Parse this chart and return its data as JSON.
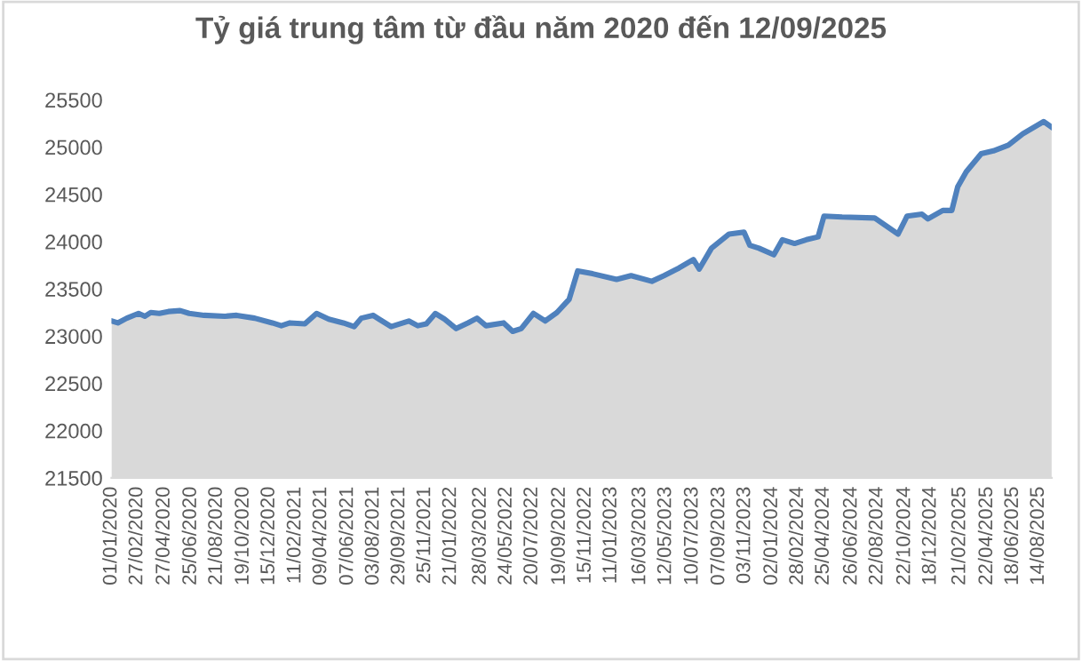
{
  "chart_data": {
    "type": "area",
    "title": "Tỷ giá trung tâm từ đầu năm 2020 đến 12/09/2025",
    "x": [
      "2020-01-01",
      "2020-01-15",
      "2020-02-04",
      "2020-03-01",
      "2020-03-15",
      "2020-03-28",
      "2020-04-16",
      "2020-05-06",
      "2020-06-01",
      "2020-06-21",
      "2020-07-24",
      "2020-09-08",
      "2020-10-04",
      "2020-11-13",
      "2020-12-22",
      "2021-01-11",
      "2021-01-30",
      "2021-03-04",
      "2021-03-30",
      "2021-04-26",
      "2021-05-28",
      "2021-06-21",
      "2021-07-07",
      "2021-08-02",
      "2021-08-15",
      "2021-09-11",
      "2021-10-20",
      "2021-11-09",
      "2021-11-28",
      "2021-12-18",
      "2022-01-07",
      "2022-02-02",
      "2022-02-28",
      "2022-03-20",
      "2022-04-09",
      "2022-05-18",
      "2022-06-07",
      "2022-06-26",
      "2022-07-23",
      "2022-08-18",
      "2022-09-13",
      "2022-10-10",
      "2022-10-29",
      "2022-12-01",
      "2023-01-23",
      "2023-02-24",
      "2023-04-11",
      "2023-05-08",
      "2023-06-10",
      "2023-07-12",
      "2023-07-25",
      "2023-08-21",
      "2023-09-29",
      "2023-11-01",
      "2023-11-14",
      "2023-12-04",
      "2024-01-06",
      "2024-01-25",
      "2024-02-21",
      "2024-03-18",
      "2024-04-13",
      "2024-04-26",
      "2024-06-05",
      "2024-08-16",
      "2024-10-07",
      "2024-10-27",
      "2024-11-29",
      "2024-12-12",
      "2025-01-14",
      "2025-02-03",
      "2025-02-16",
      "2025-03-07",
      "2025-04-09",
      "2025-05-06",
      "2025-06-08",
      "2025-07-10",
      "2025-08-25",
      "2025-09-12"
    ],
    "series": [
      {
        "color": "#4f81bd",
        "values": [
          23160,
          23140,
          23190,
          23240,
          23210,
          23250,
          23240,
          23260,
          23270,
          23240,
          23220,
          23210,
          23220,
          23190,
          23140,
          23110,
          23140,
          23130,
          23240,
          23180,
          23140,
          23100,
          23190,
          23220,
          23180,
          23100,
          23160,
          23110,
          23130,
          23240,
          23180,
          23080,
          23140,
          23190,
          23110,
          23140,
          23050,
          23080,
          23240,
          23160,
          23250,
          23390,
          23690,
          23660,
          23600,
          23640,
          23580,
          23640,
          23720,
          23810,
          23710,
          23930,
          24080,
          24100,
          23960,
          23930,
          23860,
          24020,
          23980,
          24020,
          24050,
          24270,
          24260,
          24250,
          24080,
          24270,
          24290,
          24240,
          24330,
          24330,
          24580,
          24740,
          24930,
          24960,
          25020,
          25140,
          25270,
          25210
        ]
      }
    ],
    "xlim": [
      "2020-01-01",
      "2025-09-12"
    ],
    "xticks": [
      {
        "value": "2020-01-01",
        "label": "01/01/2020"
      },
      {
        "value": "2020-02-27",
        "label": "27/02/2020"
      },
      {
        "value": "2020-04-27",
        "label": "27/04/2020"
      },
      {
        "value": "2020-06-25",
        "label": "25/06/2020"
      },
      {
        "value": "2020-08-21",
        "label": "21/08/2020"
      },
      {
        "value": "2020-10-19",
        "label": "19/10/2020"
      },
      {
        "value": "2020-12-15",
        "label": "15/12/2020"
      },
      {
        "value": "2021-02-11",
        "label": "11/02/2021"
      },
      {
        "value": "2021-04-09",
        "label": "09/04/2021"
      },
      {
        "value": "2021-06-07",
        "label": "07/06/2021"
      },
      {
        "value": "2021-08-03",
        "label": "03/08/2021"
      },
      {
        "value": "2021-09-29",
        "label": "29/09/2021"
      },
      {
        "value": "2021-11-25",
        "label": "25/11/2021"
      },
      {
        "value": "2022-01-21",
        "label": "21/01/2022"
      },
      {
        "value": "2022-03-28",
        "label": "28/03/2022"
      },
      {
        "value": "2022-05-24",
        "label": "24/05/2022"
      },
      {
        "value": "2022-07-20",
        "label": "20/07/2022"
      },
      {
        "value": "2022-09-19",
        "label": "19/09/2022"
      },
      {
        "value": "2022-11-15",
        "label": "15/11/2022"
      },
      {
        "value": "2023-01-11",
        "label": "11/01/2023"
      },
      {
        "value": "2023-03-16",
        "label": "16/03/2023"
      },
      {
        "value": "2023-05-12",
        "label": "12/05/2023"
      },
      {
        "value": "2023-07-10",
        "label": "10/07/2023"
      },
      {
        "value": "2023-09-07",
        "label": "07/09/2023"
      },
      {
        "value": "2023-11-03",
        "label": "03/11/2023"
      },
      {
        "value": "2024-01-02",
        "label": "02/01/2024"
      },
      {
        "value": "2024-02-28",
        "label": "28/02/2024"
      },
      {
        "value": "2024-04-25",
        "label": "25/04/2024"
      },
      {
        "value": "2024-06-26",
        "label": "26/06/2024"
      },
      {
        "value": "2024-08-22",
        "label": "22/08/2024"
      },
      {
        "value": "2024-10-22",
        "label": "22/10/2024"
      },
      {
        "value": "2024-12-18",
        "label": "18/12/2024"
      },
      {
        "value": "2025-02-21",
        "label": "21/02/2025"
      },
      {
        "value": "2025-04-22",
        "label": "22/04/2025"
      },
      {
        "value": "2025-06-18",
        "label": "18/06/2025"
      },
      {
        "value": "2025-08-14",
        "label": "14/08/2025"
      }
    ],
    "ylim": [
      21500,
      25500
    ],
    "yticks": [
      21500,
      22000,
      22500,
      23000,
      23500,
      24000,
      24500,
      25000,
      25500
    ],
    "grid": false
  }
}
